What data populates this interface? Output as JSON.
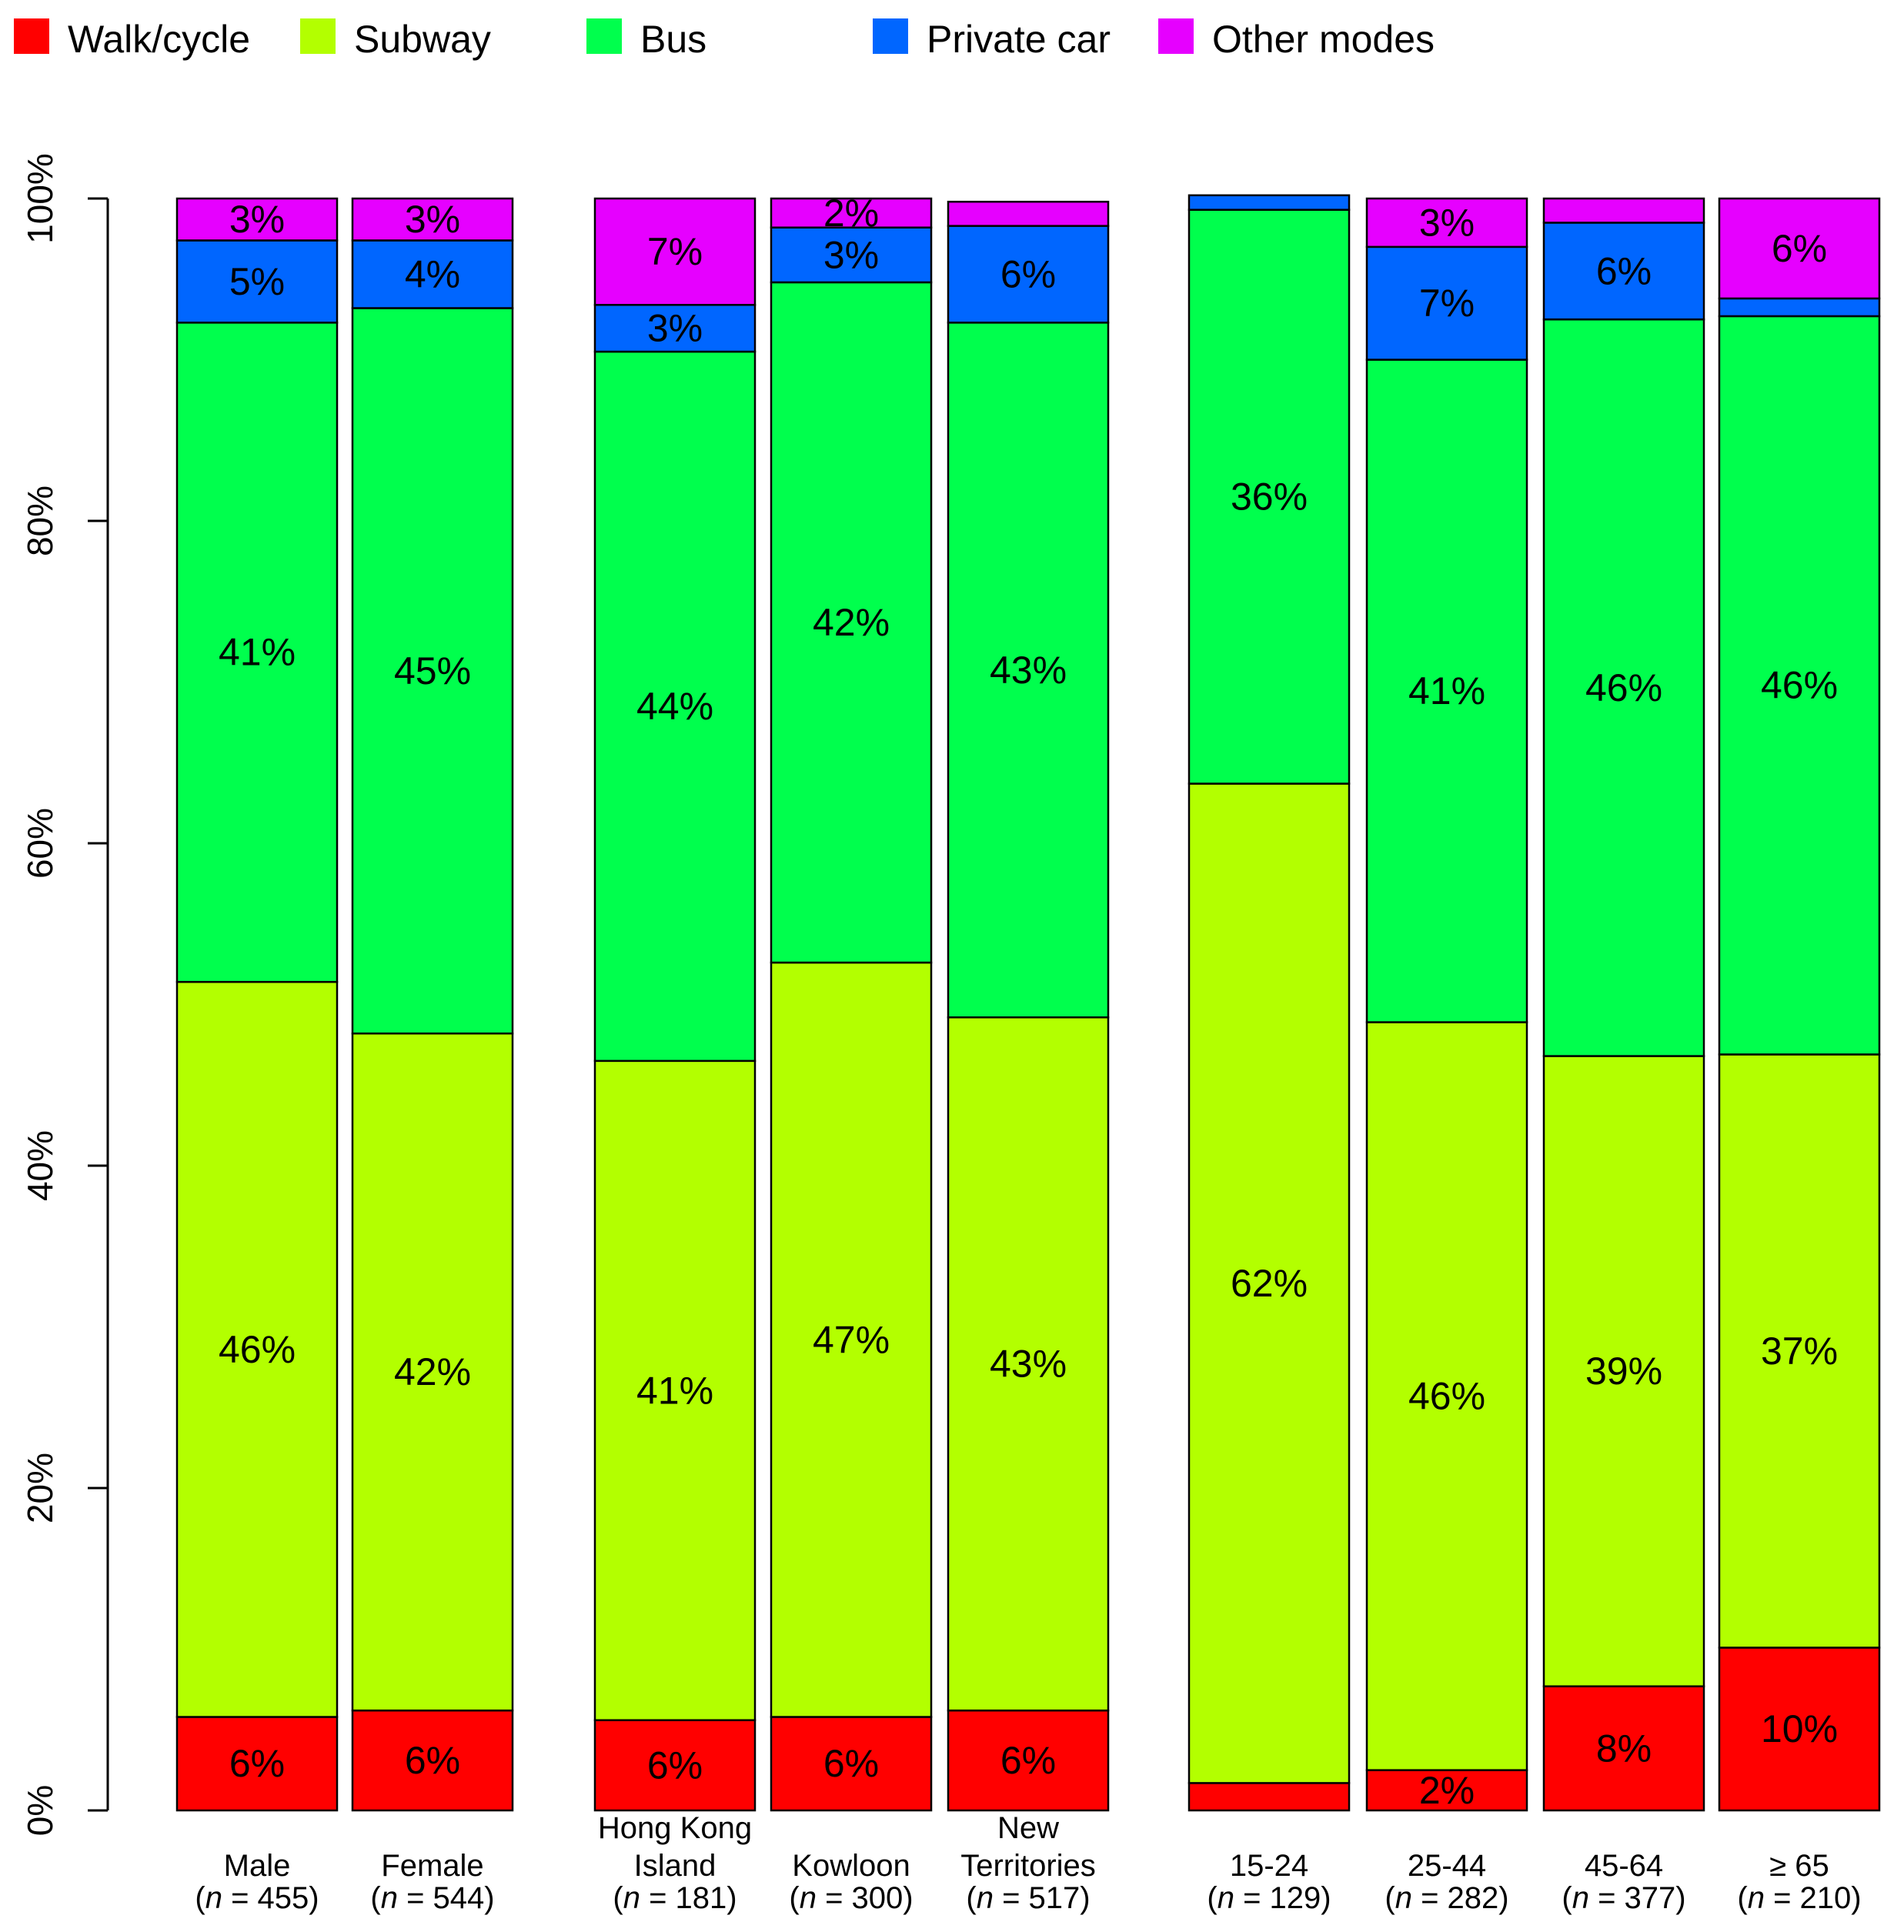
{
  "chart_data": {
    "type": "bar",
    "stacked": true,
    "ylim": [
      0,
      100
    ],
    "yticks": [
      "0%",
      "20%",
      "40%",
      "60%",
      "80%",
      "100%"
    ],
    "ytick_values": [
      0,
      20,
      40,
      60,
      80,
      100
    ],
    "legend_position": "top",
    "grid": false,
    "colors": {
      "walk": "#ff0000",
      "subway": "#b3ff00",
      "bus": "#00ff4d",
      "car": "#0066ff",
      "other": "#e600ff"
    },
    "legend": [
      {
        "key": "walk",
        "name": "Walk/cycle"
      },
      {
        "key": "subway",
        "name": "Subway"
      },
      {
        "key": "bus",
        "name": "Bus"
      },
      {
        "key": "car",
        "name": "Private car"
      },
      {
        "key": "other",
        "name": "Other modes"
      }
    ],
    "categories": [
      {
        "line1": "Male",
        "n": "455",
        "group": 0,
        "values": {
          "walk": 5.8,
          "subway": 45.6,
          "bus": 40.9,
          "car": 5.1,
          "other": 2.6
        },
        "labels": {
          "walk": "6%",
          "subway": "46%",
          "bus": "41%",
          "car": "5%",
          "other": "3%"
        }
      },
      {
        "line1": "Female",
        "n": "544",
        "group": 0,
        "values": {
          "walk": 6.2,
          "subway": 42.0,
          "bus": 45.0,
          "car": 4.2,
          "other": 2.6
        },
        "labels": {
          "walk": "6%",
          "subway": "42%",
          "bus": "45%",
          "car": "4%",
          "other": "3%"
        }
      },
      {
        "line0": "Hong Kong",
        "line1": "Island",
        "n": "181",
        "group": 1,
        "values": {
          "walk": 5.6,
          "subway": 40.9,
          "bus": 44.0,
          "car": 2.9,
          "other": 6.6
        },
        "labels": {
          "walk": "6%",
          "subway": "41%",
          "bus": "44%",
          "car": "3%",
          "other": "7%"
        }
      },
      {
        "line1": "Kowloon",
        "n": "300",
        "group": 1,
        "values": {
          "walk": 5.8,
          "subway": 46.8,
          "bus": 42.2,
          "car": 3.4,
          "other": 1.8
        },
        "labels": {
          "walk": "6%",
          "subway": "47%",
          "bus": "42%",
          "car": "3%",
          "other": "2%"
        }
      },
      {
        "line0": "New",
        "line1": "Territories",
        "n": "517",
        "group": 1,
        "values": {
          "walk": 6.2,
          "subway": 43.0,
          "bus": 43.1,
          "car": 6.0,
          "other": 1.5
        },
        "labels": {
          "walk": "6%",
          "subway": "43%",
          "bus": "43%",
          "car": "6%",
          "other": ""
        }
      },
      {
        "line1": "15-24",
        "n": "129",
        "group": 2,
        "values": {
          "walk": 1.7,
          "subway": 62.0,
          "bus": 35.6,
          "car": 0.9,
          "other": 0.0
        },
        "labels": {
          "walk": "",
          "subway": "62%",
          "bus": "36%",
          "car": "",
          "other": ""
        }
      },
      {
        "line1": "25-44",
        "n": "282",
        "group": 2,
        "values": {
          "walk": 2.5,
          "subway": 46.4,
          "bus": 41.1,
          "car": 7.0,
          "other": 3.0
        },
        "labels": {
          "walk": "2%",
          "subway": "46%",
          "bus": "41%",
          "car": "7%",
          "other": "3%"
        }
      },
      {
        "line1": "45-64",
        "n": "377",
        "group": 2,
        "values": {
          "walk": 7.7,
          "subway": 39.1,
          "bus": 45.7,
          "car": 6.0,
          "other": 1.5
        },
        "labels": {
          "walk": "8%",
          "subway": "39%",
          "bus": "46%",
          "car": "6%",
          "other": ""
        }
      },
      {
        "line1": "≥ 65",
        "n": "210",
        "group": 2,
        "values": {
          "walk": 10.1,
          "subway": 36.8,
          "bus": 45.8,
          "car": 1.1,
          "other": 6.2
        },
        "labels": {
          "walk": "10%",
          "subway": "37%",
          "bus": "46%",
          "car": "",
          "other": "6%"
        }
      }
    ]
  }
}
